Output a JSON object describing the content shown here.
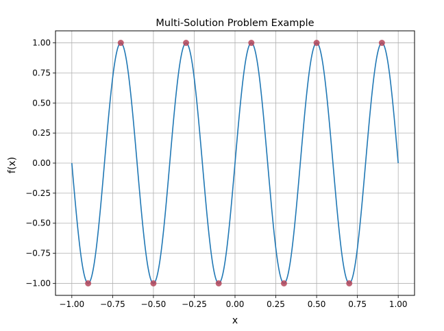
{
  "chart_data": {
    "type": "line",
    "title": "Multi-Solution Problem Example",
    "xlabel": "x",
    "ylabel": "f(x)",
    "xlim": [
      -1.1,
      1.1
    ],
    "ylim": [
      -1.1,
      1.1
    ],
    "grid": true,
    "x_ticks": [
      -1.0,
      -0.75,
      -0.5,
      -0.25,
      0.0,
      0.25,
      0.5,
      0.75,
      1.0
    ],
    "x_tick_labels": [
      "−1.00",
      "−0.75",
      "−0.50",
      "−0.25",
      "0.00",
      "0.25",
      "0.50",
      "0.75",
      "1.00"
    ],
    "y_ticks": [
      -1.0,
      -0.75,
      -0.5,
      -0.25,
      0.0,
      0.25,
      0.5,
      0.75,
      1.0
    ],
    "y_tick_labels": [
      "−1.00",
      "−0.75",
      "−0.50",
      "−0.25",
      "0.00",
      "0.25",
      "0.50",
      "0.75",
      "1.00"
    ],
    "curve": {
      "function": "sin(5*pi*x)",
      "x_range": [
        -1.0,
        1.0
      ],
      "color": "#1f77b4"
    },
    "extrema_points": {
      "color": "#b5475a",
      "x": [
        -0.9,
        -0.7,
        -0.5,
        -0.3,
        -0.1,
        0.1,
        0.3,
        0.5,
        0.7,
        0.9
      ],
      "y": [
        -1.0,
        1.0,
        -1.0,
        1.0,
        -1.0,
        1.0,
        -1.0,
        1.0,
        -1.0,
        1.0
      ]
    }
  }
}
